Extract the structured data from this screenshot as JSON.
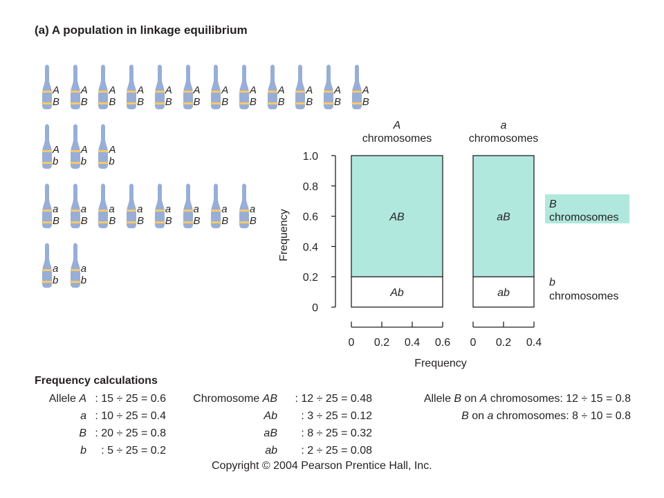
{
  "title": "(a) A population in linkage equilibrium",
  "colors": {
    "chromosome": "#98aed6",
    "band": "#f5c96a",
    "highlight": "#b1e8dd"
  },
  "chromosome_groups": [
    {
      "top": "A",
      "bottom": "B",
      "count": 12
    },
    {
      "top": "A",
      "bottom": "b",
      "count": 3
    },
    {
      "top": "a",
      "bottom": "B",
      "count": 8
    },
    {
      "top": "a",
      "bottom": "b",
      "count": 2
    }
  ],
  "chart": {
    "col_headers": [
      {
        "italic": "A",
        "text": "chromosomes"
      },
      {
        "italic": "a",
        "text": "chromosomes"
      }
    ],
    "y_axis_label": "Frequency",
    "y_ticks": [
      "1.0",
      "0.8",
      "0.6",
      "0.4",
      "0.2",
      "0"
    ],
    "x_axis_label": "Frequency",
    "x_ticks_A": [
      "0",
      "0.2",
      "0.4",
      "0.6"
    ],
    "x_ticks_a": [
      "0",
      "0.2",
      "0.4"
    ],
    "boxes": [
      {
        "label": "AB",
        "column": "A",
        "width": 0.6,
        "from": 0.2,
        "to": 1.0,
        "fill": "highlight"
      },
      {
        "label": "Ab",
        "column": "A",
        "width": 0.6,
        "from": 0.0,
        "to": 0.2,
        "fill": "white"
      },
      {
        "label": "aB",
        "column": "a",
        "width": 0.4,
        "from": 0.2,
        "to": 1.0,
        "fill": "highlight"
      },
      {
        "label": "ab",
        "column": "a",
        "width": 0.4,
        "from": 0.0,
        "to": 0.2,
        "fill": "white"
      }
    ],
    "right_labels": [
      {
        "italic": "B",
        "text": "chromosomes"
      },
      {
        "italic": "b",
        "text": "chromosomes"
      }
    ]
  },
  "calc_title": "Frequency calculations",
  "allele_calcs": [
    {
      "prefix": "Allele ",
      "sym": "A",
      "expr": ":  15 ÷ 25 = 0.6"
    },
    {
      "prefix": "",
      "sym": "a",
      "expr": ":  10 ÷ 25 = 0.4"
    },
    {
      "prefix": "",
      "sym": "B",
      "expr": ":  20 ÷ 25 = 0.8"
    },
    {
      "prefix": "",
      "sym": "b",
      "expr": ":    5 ÷ 25 = 0.2"
    }
  ],
  "chromosome_calcs": [
    {
      "prefix": "Chromosome ",
      "sym": "AB",
      "expr": ":  12 ÷ 25 = 0.48"
    },
    {
      "prefix": "",
      "sym": "Ab",
      "expr": ":    3 ÷ 25 = 0.12"
    },
    {
      "prefix": "",
      "sym": "aB",
      "expr": ":    8 ÷ 25 = 0.32"
    },
    {
      "prefix": "",
      "sym": "ab",
      "expr": ":    2 ÷ 25 = 0.08"
    }
  ],
  "conditional_calcs": [
    {
      "p1": "Allele ",
      "s1": "B",
      "p2": " on ",
      "s2": "A",
      "p3": " chromosomes:  12 ÷ 15 = 0.8"
    },
    {
      "p1": "",
      "s1": "B",
      "p2": " on ",
      "s2": "a",
      "p3": " chromosomes:    8 ÷ 10 = 0.8"
    }
  ],
  "copyright": "Copyright © 2004 Pearson Prentice Hall, Inc."
}
